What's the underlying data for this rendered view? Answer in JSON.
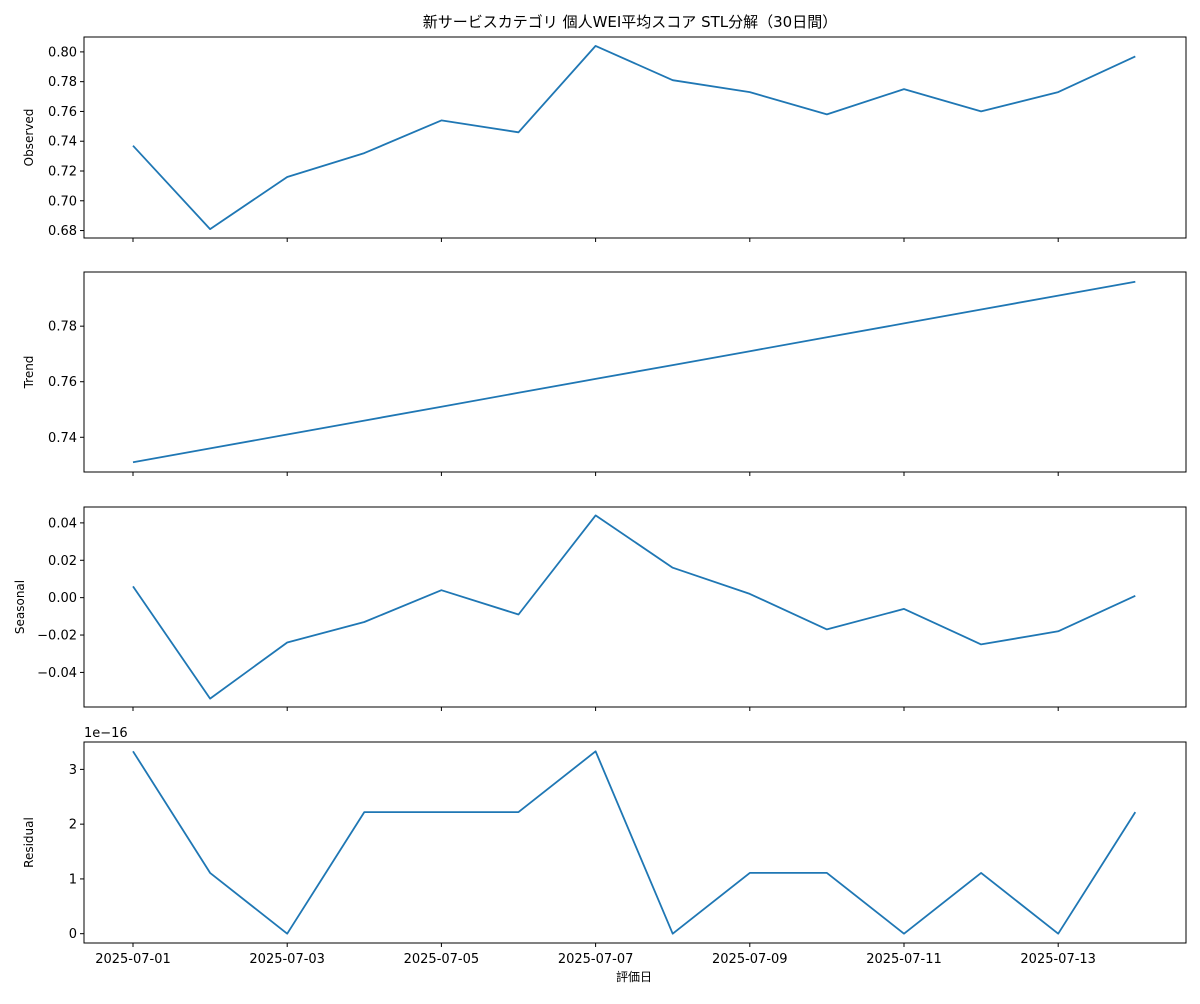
{
  "chart_data": {
    "type": "line",
    "title": "新サービスカテゴリ 個人WEI平均スコア STL分解（30日間）",
    "xlabel": "評価日",
    "x": [
      "2025-07-01",
      "2025-07-02",
      "2025-07-03",
      "2025-07-04",
      "2025-07-05",
      "2025-07-06",
      "2025-07-07",
      "2025-07-08",
      "2025-07-09",
      "2025-07-10",
      "2025-07-11",
      "2025-07-12",
      "2025-07-13",
      "2025-07-14"
    ],
    "x_tick_labels": [
      "2025-07-01",
      "2025-07-03",
      "2025-07-05",
      "2025-07-07",
      "2025-07-09",
      "2025-07-11",
      "2025-07-13"
    ],
    "line_color": "#1f77b4",
    "panels": [
      {
        "ylabel": "Observed",
        "ylim": [
          0.675,
          0.81
        ],
        "yticks": [
          0.68,
          0.7,
          0.72,
          0.74,
          0.76,
          0.78,
          0.8
        ],
        "ytick_labels": [
          "0.68",
          "0.70",
          "0.72",
          "0.74",
          "0.76",
          "0.78",
          "0.80"
        ],
        "values": [
          0.737,
          0.681,
          0.716,
          0.732,
          0.754,
          0.746,
          0.804,
          0.781,
          0.773,
          0.758,
          0.775,
          0.76,
          0.773,
          0.797
        ]
      },
      {
        "ylabel": "Trend",
        "ylim": [
          0.7275,
          0.7995
        ],
        "yticks": [
          0.74,
          0.76,
          0.78
        ],
        "ytick_labels": [
          "0.74",
          "0.76",
          "0.78"
        ],
        "values": [
          0.731,
          0.736,
          0.741,
          0.746,
          0.751,
          0.756,
          0.761,
          0.766,
          0.771,
          0.776,
          0.781,
          0.786,
          0.791,
          0.796
        ]
      },
      {
        "ylabel": "Seasonal",
        "ylim": [
          -0.0585,
          0.0485
        ],
        "yticks": [
          -0.04,
          -0.02,
          0.0,
          0.02,
          0.04
        ],
        "ytick_labels": [
          "−0.04",
          "−0.02",
          "0.00",
          "0.02",
          "0.04"
        ],
        "values": [
          0.006,
          -0.054,
          -0.024,
          -0.013,
          0.004,
          -0.009,
          0.044,
          0.016,
          0.002,
          -0.017,
          -0.006,
          -0.025,
          -0.018,
          0.001
        ]
      },
      {
        "ylabel": "Residual",
        "offset_text": "1e−16",
        "ylim": [
          -0.17,
          3.5
        ],
        "yticks": [
          0,
          1,
          2,
          3
        ],
        "ytick_labels": [
          "0",
          "1",
          "2",
          "3"
        ],
        "values": [
          3.33,
          1.11,
          0.0,
          2.22,
          2.22,
          2.22,
          3.33,
          0.0,
          1.11,
          1.11,
          0.0,
          1.11,
          0.0,
          2.22
        ]
      }
    ]
  }
}
